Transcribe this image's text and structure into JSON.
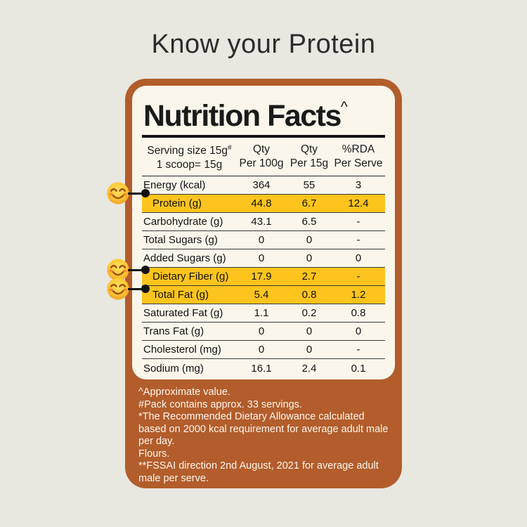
{
  "page": {
    "title": "Know your Protein"
  },
  "colors": {
    "background": "#e8e7e0",
    "card_brown": "#b25d2b",
    "panel_cream": "#faf6ec",
    "highlight_yellow": "#fcc41d",
    "footnote_white": "#fdf6ee"
  },
  "nutrition_label": {
    "title": "Nutrition Facts",
    "title_superscript": "^",
    "header": {
      "serving_line1": "Serving size 15g",
      "serving_sup": "#",
      "serving_line2": "1 scoop= 15g",
      "qty100_line1": "Qty",
      "qty100_line2": "Per 100g",
      "qty15_line1": "Qty",
      "qty15_line2": "Per 15g",
      "rda_line1": "%RDA",
      "rda_line2": "Per Serve"
    },
    "rows": [
      {
        "name": "Energy (kcal)",
        "per100": "364",
        "per15": "55",
        "rda": "3",
        "highlight": false
      },
      {
        "name": "Protein (g)",
        "per100": "44.8",
        "per15": "6.7",
        "rda": "12.4",
        "highlight": true
      },
      {
        "name": "Carbohydrate (g)",
        "per100": "43.1",
        "per15": "6.5",
        "rda": "-",
        "highlight": false
      },
      {
        "name": "Total Sugars (g)",
        "per100": "0",
        "per15": "0",
        "rda": "-",
        "highlight": false
      },
      {
        "name": "Added Sugars (g)",
        "per100": "0",
        "per15": "0",
        "rda": "0",
        "highlight": false
      },
      {
        "name": "Dietary Fiber (g)",
        "per100": "17.9",
        "per15": "2.7",
        "rda": "-",
        "highlight": true
      },
      {
        "name": "Total Fat (g)",
        "per100": "5.4",
        "per15": "0.8",
        "rda": "1.2",
        "highlight": true
      },
      {
        "name": "Saturated Fat (g)",
        "per100": "1.1",
        "per15": "0.2",
        "rda": "0.8",
        "highlight": false
      },
      {
        "name": "Trans Fat (g)",
        "per100": "0",
        "per15": "0",
        "rda": "0",
        "highlight": false
      },
      {
        "name": "Cholesterol (mg)",
        "per100": "0",
        "per15": "0",
        "rda": "-",
        "highlight": false
      },
      {
        "name": "Sodium (mg)",
        "per100": "16.1",
        "per15": "2.4",
        "rda": "0.1",
        "highlight": false
      }
    ],
    "footnotes": [
      "^Approximate value.",
      "#Pack contains approx. 33 servings.",
      "*The Recommended Dietary Allowance calculated based on 2000 kcal requirement for average adult male per day.",
      "Flours.",
      "**FSSAI direction 2nd August, 2021 for average adult male per serve."
    ]
  },
  "icons": {
    "callout_emoji": "smiling-face-with-smiling-eyes"
  }
}
